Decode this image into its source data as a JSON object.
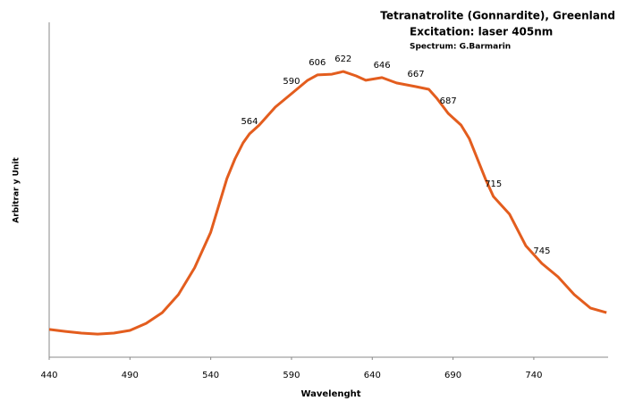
{
  "chart_data": {
    "type": "line",
    "title": "Tetranatrolite (Gonnardite), Greenland",
    "subtitle": "Excitation: laser 405nm",
    "credit": "Spectrum: G.Barmarin",
    "xlabel": "Wavelenght",
    "ylabel": "Arbitrar y Unit",
    "x": [
      440,
      450,
      460,
      470,
      480,
      490,
      500,
      510,
      520,
      530,
      540,
      550,
      555,
      560,
      564,
      570,
      580,
      590,
      600,
      606,
      615,
      622,
      630,
      636,
      646,
      655,
      667,
      675,
      680,
      687,
      695,
      700,
      710,
      715,
      725,
      735,
      745,
      755,
      765,
      775,
      785
    ],
    "series": [
      {
        "name": "Spectrum",
        "color": "#e35d1e",
        "values": [
          8.3,
          7.7,
          7.2,
          6.9,
          7.2,
          8,
          10.1,
          13.3,
          18.7,
          26.7,
          37.3,
          53.3,
          59.2,
          64,
          66.7,
          69.3,
          74.7,
          78.7,
          82.7,
          84.3,
          84.5,
          85.3,
          84,
          82.7,
          83.5,
          81.9,
          80.8,
          80,
          77.3,
          72.8,
          69.3,
          65.3,
          53.3,
          48,
          42.7,
          33.3,
          28,
          24,
          18.7,
          14.7,
          13.3
        ]
      }
    ],
    "peaks": [
      564,
      590,
      606,
      622,
      646,
      667,
      687,
      715,
      745
    ],
    "xlim": [
      440,
      786
    ],
    "xticks": [
      440,
      490,
      540,
      590,
      640,
      690,
      740
    ],
    "ylim": [
      0,
      100
    ]
  }
}
